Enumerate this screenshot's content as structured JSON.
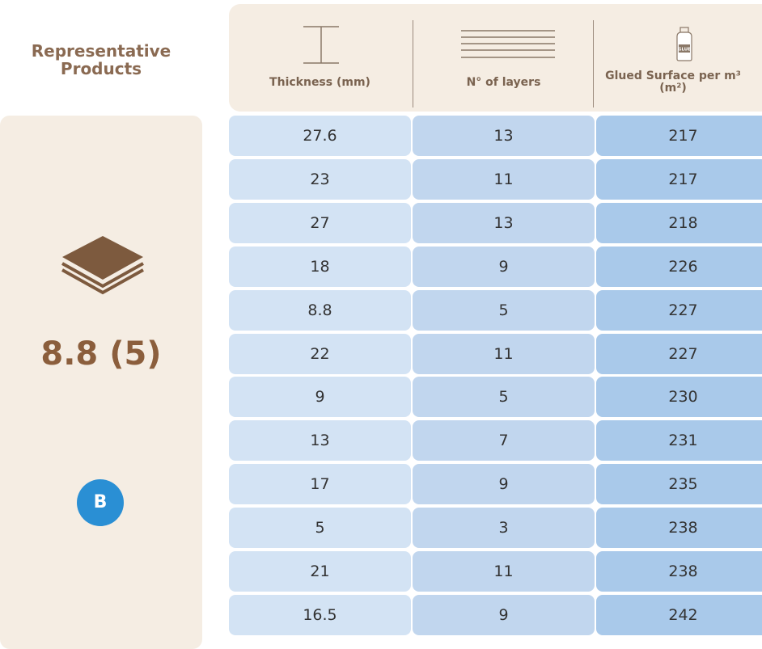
{
  "header": {
    "title": "Representative Products"
  },
  "columns": [
    {
      "label": "Thickness (mm)"
    },
    {
      "label": "N° of layers"
    },
    {
      "label": "Glued Surface per m³ (m²)",
      "icon_text": "GLUE"
    }
  ],
  "product": {
    "label": "8.8 (5)",
    "badge": "B"
  },
  "table": {
    "rows": [
      [
        27.6,
        13,
        217
      ],
      [
        23,
        11,
        217
      ],
      [
        27,
        13,
        218
      ],
      [
        18,
        9,
        226
      ],
      [
        8.8,
        5,
        227
      ],
      [
        22,
        11,
        227
      ],
      [
        9,
        5,
        230
      ],
      [
        13,
        7,
        231
      ],
      [
        17,
        9,
        235
      ],
      [
        5,
        3,
        238
      ],
      [
        21,
        11,
        238
      ],
      [
        16.5,
        9,
        242
      ]
    ]
  }
}
